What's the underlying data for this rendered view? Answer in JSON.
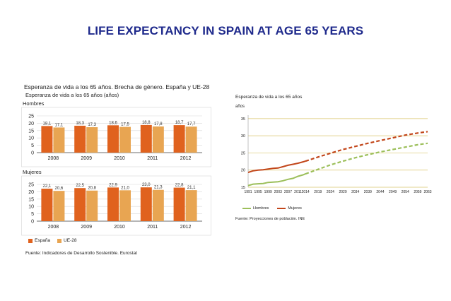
{
  "slide": {
    "title": "LIFE EXPECTANCY IN SPAIN AT AGE 65 YEARS"
  },
  "left_panel": {
    "title": "Esperanza de vida a los 65 años. Brecha de género. España y UE-28",
    "subtitle": "Esperanza de vida a los 65 años (años)",
    "source": "Fuente: Indicadores de Desarrollo Sostenible. Eurostat",
    "legend": [
      "España",
      "UE-28"
    ]
  },
  "right_panel": {
    "title": "Esperanza de vida a los 65 años",
    "unit": "años",
    "source": "Fuente: Proyecciones de población. INE",
    "legend": [
      "Hombres",
      "Mujeres"
    ]
  },
  "chart_data": [
    {
      "type": "bar",
      "title": "Hombres",
      "categories": [
        "2008",
        "2009",
        "2010",
        "2011",
        "2012"
      ],
      "series": [
        {
          "name": "España",
          "values": [
            18.1,
            18.3,
            18.6,
            18.8,
            18.7
          ],
          "labels": [
            "18,1",
            "18,3",
            "18,6",
            "18,8",
            "18,7"
          ],
          "color": "#e0621e"
        },
        {
          "name": "UE-28",
          "values": [
            17.1,
            17.3,
            17.5,
            17.8,
            17.7
          ],
          "labels": [
            "17,1",
            "17,3",
            "17,5",
            "17,8",
            "17,7"
          ],
          "color": "#e8a552"
        }
      ],
      "yticks": [
        0,
        5,
        10,
        15,
        20,
        25
      ],
      "ylim": [
        0,
        25
      ]
    },
    {
      "type": "bar",
      "title": "Mujeres",
      "categories": [
        "2008",
        "2009",
        "2010",
        "2011",
        "2012"
      ],
      "series": [
        {
          "name": "España",
          "values": [
            22.1,
            22.5,
            22.9,
            23.0,
            22.8
          ],
          "labels": [
            "22,1",
            "22,5",
            "22,9",
            "23,0",
            "22,8"
          ],
          "color": "#e0621e"
        },
        {
          "name": "UE-28",
          "values": [
            20.6,
            20.8,
            21.0,
            21.3,
            21.1
          ],
          "labels": [
            "20,6",
            "20,8",
            "21,0",
            "21,3",
            "21,1"
          ],
          "color": "#e8a552"
        }
      ],
      "yticks": [
        0,
        5,
        10,
        15,
        20,
        25
      ],
      "ylim": [
        0,
        25
      ]
    },
    {
      "type": "line",
      "title": "Esperanza de vida a los 65 años",
      "ylabel": "años",
      "xlim": [
        1991,
        2063
      ],
      "ylim": [
        15,
        36
      ],
      "yticks": [
        15,
        20,
        25,
        30,
        35
      ],
      "xticks": [
        "1991",
        "1995",
        "1999",
        "2003",
        "2007",
        "2011",
        "2014",
        "2019",
        "2024",
        "2029",
        "2034",
        "2039",
        "2044",
        "2049",
        "2054",
        "2059",
        "2063"
      ],
      "projection_start": 2014,
      "series": [
        {
          "name": "Hombres",
          "color": "#9cbf5a",
          "x": [
            1991,
            1993,
            1995,
            1997,
            1999,
            2001,
            2003,
            2005,
            2007,
            2009,
            2011,
            2013,
            2014,
            2019,
            2024,
            2029,
            2034,
            2039,
            2044,
            2049,
            2054,
            2059,
            2063
          ],
          "y": [
            15.5,
            15.9,
            16.0,
            16.1,
            16.4,
            16.5,
            16.6,
            16.9,
            17.3,
            17.6,
            18.2,
            18.6,
            18.9,
            20.2,
            21.5,
            22.6,
            23.6,
            24.5,
            25.3,
            26.0,
            26.7,
            27.4,
            27.8
          ]
        },
        {
          "name": "Mujeres",
          "color": "#c2461a",
          "x": [
            1991,
            1993,
            1995,
            1997,
            1999,
            2001,
            2003,
            2005,
            2007,
            2009,
            2011,
            2013,
            2014,
            2019,
            2024,
            2029,
            2034,
            2039,
            2044,
            2049,
            2054,
            2059,
            2063
          ],
          "y": [
            19.3,
            19.8,
            20.0,
            20.1,
            20.3,
            20.5,
            20.6,
            21.0,
            21.4,
            21.7,
            22.0,
            22.4,
            22.6,
            23.8,
            24.9,
            26.0,
            26.9,
            27.8,
            28.6,
            29.4,
            30.2,
            30.8,
            31.2
          ]
        }
      ]
    }
  ]
}
